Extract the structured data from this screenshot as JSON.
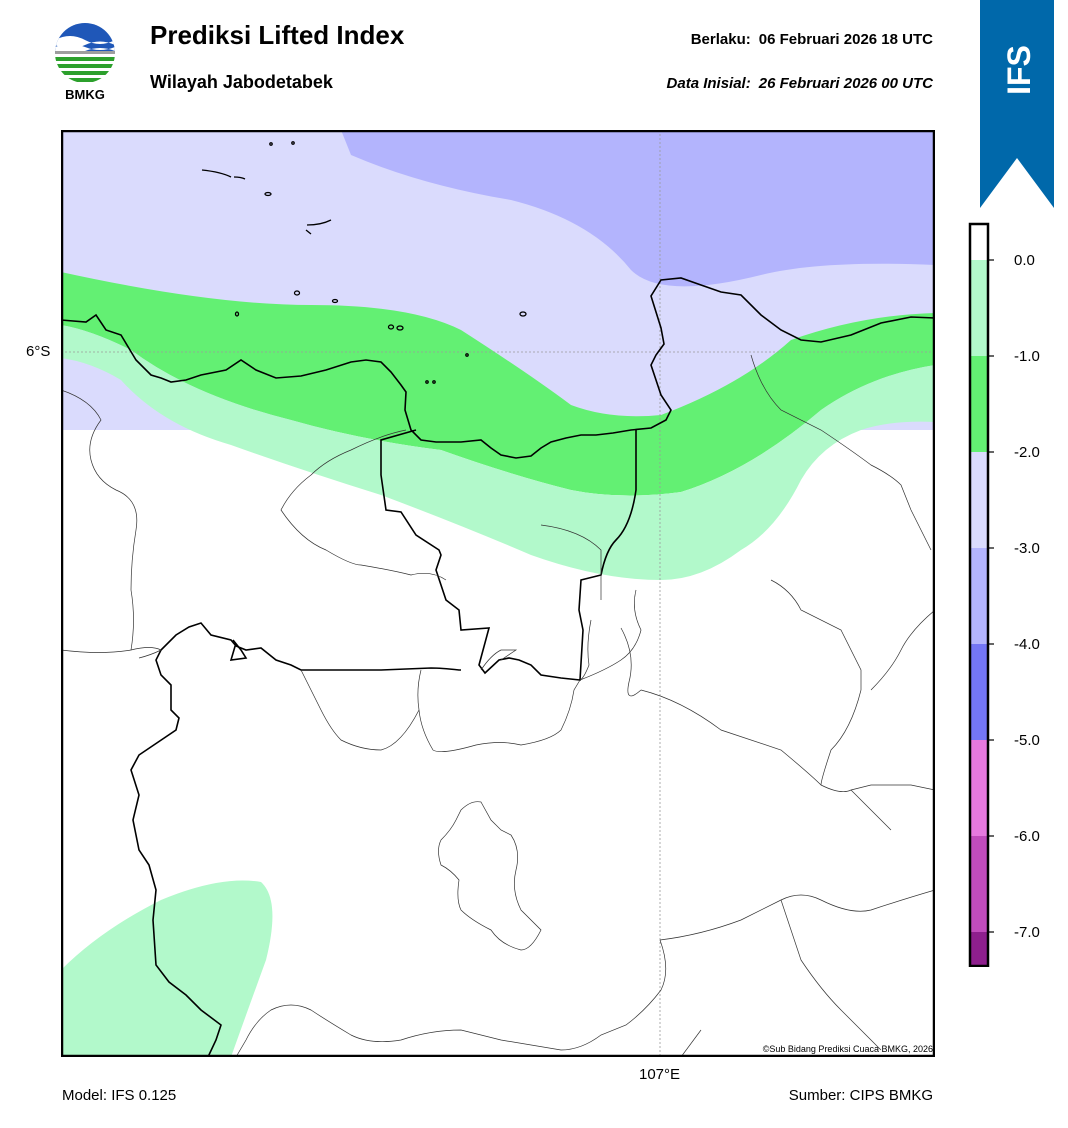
{
  "header": {
    "logo_text": "BMKG",
    "title": "Prediksi Lifted Index",
    "subtitle": "Wilayah Jabodetabek",
    "valid_label": "Berlaku:",
    "valid_value": "06 Februari 2026 18 UTC",
    "init_label": "Data Inisial:",
    "init_value": "26 Februari 2026 00 UTC"
  },
  "ribbon": {
    "label": "IFS",
    "color": "#0068aa"
  },
  "map": {
    "lat_label": "6°S",
    "lon_label": "107°E",
    "copyright": "©Sub Bidang Prediksi Cuaca BMKG, 2026"
  },
  "colorbar": {
    "ticks": [
      "0.0",
      "-1.0",
      "-2.0",
      "-3.0",
      "-4.0",
      "-5.0",
      "-6.0",
      "-7.0"
    ],
    "bins": [
      {
        "range": "0.0 to -1.0",
        "color": "#b2f9cb"
      },
      {
        "range": "-1.0 to -2.0",
        "color": "#63f073"
      },
      {
        "range": "-2.0 to -3.0",
        "color": "#dadbfd"
      },
      {
        "range": "-3.0 to -4.0",
        "color": "#b3b4fd"
      },
      {
        "range": "-4.0 to -5.0",
        "color": "#7476f5"
      },
      {
        "range": "-5.0 to -6.0",
        "color": "#e779df"
      },
      {
        "range": "-6.0 to -7.0",
        "color": "#c14cbc"
      },
      {
        "range": "below -7.0",
        "color": "#8e1f8d"
      }
    ]
  },
  "footer": {
    "model": "Model: IFS 0.125",
    "source": "Sumber: CIPS BMKG"
  }
}
